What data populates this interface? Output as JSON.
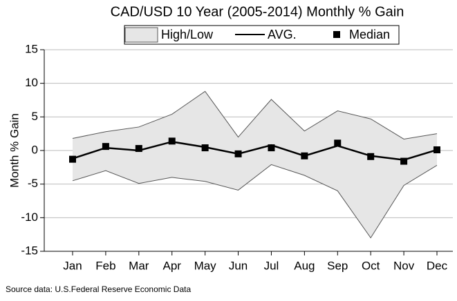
{
  "chart_data": {
    "type": "line",
    "title": "CAD/USD 10 Year (2005-2014) Monthly % Gain",
    "y_label": "Month % Gain",
    "source": "Source data: U.S.Federal Reserve Economic Data",
    "categories": [
      "Jan",
      "Feb",
      "Mar",
      "Apr",
      "May",
      "Jun",
      "Jul",
      "Aug",
      "Sep",
      "Oct",
      "Nov",
      "Dec"
    ],
    "series": [
      {
        "name": "High/Low",
        "type": "band",
        "color": "#e6e6e6",
        "high": [
          1.8,
          2.8,
          3.5,
          5.4,
          8.8,
          2.0,
          7.6,
          2.9,
          5.9,
          4.7,
          1.7,
          2.5
        ],
        "low": [
          -4.5,
          -3.0,
          -4.9,
          -4.0,
          -4.6,
          -5.9,
          -2.1,
          -3.7,
          -6.0,
          -13.0,
          -5.2,
          -2.2
        ]
      },
      {
        "name": "AVG.",
        "type": "line",
        "color": "#000000",
        "values": [
          -1.2,
          0.4,
          0.0,
          1.3,
          0.5,
          -0.5,
          0.8,
          -0.8,
          0.7,
          -0.8,
          -1.4,
          0.1
        ]
      },
      {
        "name": "Median",
        "type": "marker",
        "color": "#000000",
        "values": [
          -1.3,
          0.6,
          0.3,
          1.4,
          0.4,
          -0.5,
          0.4,
          -0.8,
          1.1,
          -0.9,
          -1.6,
          0.1
        ]
      }
    ],
    "ylim": [
      -15,
      15
    ],
    "yticks": [
      -15,
      -10,
      -5,
      0,
      5,
      10,
      15
    ],
    "grid": true
  }
}
